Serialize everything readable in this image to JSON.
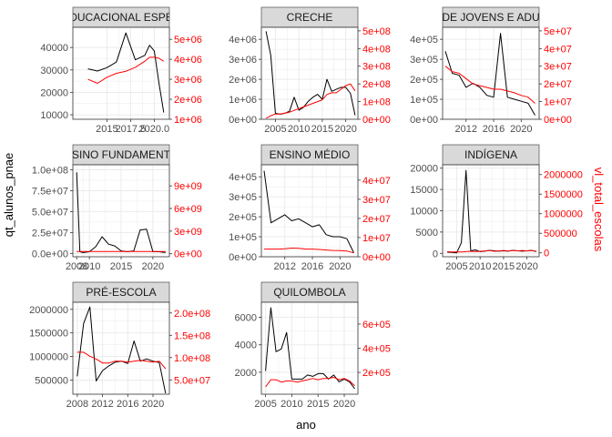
{
  "axis_titles": {
    "x": "ano",
    "y_left": "qt_alunos_pnae",
    "y_right": "vl_total_escolas"
  },
  "colors": {
    "primary_line": "#000000",
    "secondary_line": "#ff0000",
    "strip_fill": "#d9d9d9",
    "grid": "#ebebeb"
  },
  "chart_data": [
    {
      "type": "line",
      "panel": "EDUCACIONAL ESPECIAL",
      "strip_label": "DUCACIONAL ESPE",
      "xlim": [
        2011.4,
        2021.6
      ],
      "x_ticks": [
        2015.0,
        2017.5,
        2020.0
      ],
      "x_tick_labels": [
        "2015",
        "2017.5",
        "2020.0"
      ],
      "ylim_left": [
        8000,
        49000
      ],
      "y_ticks_left": [
        10000,
        20000,
        30000,
        40000
      ],
      "y_tick_labels_left": [
        "10000",
        "20000",
        "30000",
        "40000"
      ],
      "ylim_right": [
        1000000,
        5600000
      ],
      "y_ticks_right": [
        1000000,
        2000000,
        3000000,
        4000000,
        5000000
      ],
      "y_tick_labels_right": [
        "1e+06",
        "2e+06",
        "3e+06",
        "4e+06",
        "5e+06"
      ],
      "series": [
        {
          "axis": "left",
          "color": "#000000",
          "x": [
            2013,
            2014,
            2015,
            2016,
            2017,
            2018,
            2019,
            2019.5,
            2020,
            2020.5,
            2021
          ],
          "y": [
            30500,
            29500,
            31000,
            33500,
            46500,
            34500,
            36500,
            41000,
            38500,
            24000,
            11000
          ]
        },
        {
          "axis": "right",
          "color": "#ff0000",
          "x": [
            2013,
            2014,
            2015,
            2016,
            2017,
            2018,
            2019,
            2019.5,
            2020,
            2020.5,
            2021
          ],
          "y": [
            3000000,
            2800000,
            3100000,
            3300000,
            3400000,
            3600000,
            3900000,
            4100000,
            4100000,
            4050000,
            3900000
          ]
        }
      ]
    },
    {
      "type": "line",
      "panel": "CRECHE",
      "strip_label": "CRECHE",
      "xlim": [
        2002.0,
        2022.6
      ],
      "x_ticks": [
        2005,
        2010,
        2015,
        2020
      ],
      "x_tick_labels": [
        "2005",
        "2010",
        "2015",
        "2020"
      ],
      "ylim_left": [
        0,
        4600000
      ],
      "y_ticks_left": [
        0,
        1000000,
        2000000,
        3000000,
        4000000
      ],
      "y_tick_labels_left": [
        "0e+00",
        "1e+06",
        "2e+06",
        "3e+06",
        "4e+06"
      ],
      "ylim_right": [
        0,
        520000000
      ],
      "y_ticks_right": [
        0,
        100000000,
        200000000,
        300000000,
        400000000,
        500000000
      ],
      "y_tick_labels_right": [
        "0e+00",
        "1e+08",
        "2e+08",
        "3e+08",
        "4e+08",
        "5e+08"
      ],
      "series": [
        {
          "axis": "left",
          "color": "#000000",
          "x": [
            2003,
            2004,
            2005,
            2006,
            2007,
            2008,
            2009,
            2010,
            2011,
            2012,
            2013,
            2014,
            2015,
            2016,
            2017,
            2018,
            2019,
            2020,
            2021,
            2022
          ],
          "y": [
            4400000,
            3200000,
            300000,
            250000,
            300000,
            400000,
            1100000,
            450000,
            600000,
            900000,
            1100000,
            1250000,
            1000000,
            2000000,
            1400000,
            1500000,
            1600000,
            1600000,
            1300000,
            200000
          ]
        },
        {
          "axis": "right",
          "color": "#ff0000",
          "x": [
            2003,
            2004,
            2005,
            2006,
            2007,
            2008,
            2009,
            2010,
            2011,
            2012,
            2013,
            2014,
            2015,
            2016,
            2017,
            2018,
            2019,
            2020,
            2021,
            2022
          ],
          "y": [
            5000000,
            20000000,
            30000000,
            30000000,
            35000000,
            40000000,
            50000000,
            60000000,
            70000000,
            80000000,
            90000000,
            100000000,
            110000000,
            140000000,
            150000000,
            150000000,
            170000000,
            190000000,
            200000000,
            160000000
          ]
        }
      ]
    },
    {
      "type": "line",
      "panel": "EDUCAÇÃO DE JOVENS E ADULTOS",
      "strip_label": "DE JOVENS E ADU",
      "xlim": [
        2008.6,
        2022.6
      ],
      "x_ticks": [
        2012,
        2016,
        2020
      ],
      "x_tick_labels": [
        "2012",
        "2016",
        "2020"
      ],
      "ylim_left": [
        0,
        460000
      ],
      "y_ticks_left": [
        0,
        100000,
        200000,
        300000,
        400000
      ],
      "y_tick_labels_left": [
        "0e+00",
        "1e+05",
        "2e+05",
        "3e+05",
        "4e+05"
      ],
      "ylim_right": [
        0,
        52000000
      ],
      "y_ticks_right": [
        0,
        10000000,
        20000000,
        30000000,
        40000000,
        50000000
      ],
      "y_tick_labels_right": [
        "0e+00",
        "1e+07",
        "2e+07",
        "3e+07",
        "4e+07",
        "5e+07"
      ],
      "series": [
        {
          "axis": "left",
          "color": "#000000",
          "x": [
            2009,
            2010,
            2011,
            2012,
            2013,
            2014,
            2015,
            2016,
            2017,
            2018,
            2019,
            2020,
            2021,
            2022
          ],
          "y": [
            340000,
            230000,
            220000,
            160000,
            180000,
            160000,
            120000,
            110000,
            430000,
            110000,
            100000,
            90000,
            80000,
            20000
          ]
        },
        {
          "axis": "right",
          "color": "#ff0000",
          "x": [
            2009,
            2010,
            2011,
            2012,
            2013,
            2014,
            2015,
            2016,
            2017,
            2018,
            2019,
            2020,
            2021,
            2022
          ],
          "y": [
            30000000,
            27000000,
            26000000,
            23000000,
            20000000,
            19000000,
            18000000,
            17000000,
            17000000,
            16000000,
            15000000,
            13500000,
            12500000,
            9000000
          ]
        }
      ]
    },
    {
      "type": "line",
      "panel": "ENSINO FUNDAMENTAL",
      "strip_label": "SINO FUNDAMENT",
      "xlim": [
        2007.4,
        2022.6
      ],
      "x_ticks": [
        2008,
        2010,
        2015,
        2020
      ],
      "x_tick_labels": [
        "2008",
        "2010",
        "2015",
        "2020"
      ],
      "ylim_left": [
        -4000000,
        106000000
      ],
      "y_ticks_left": [
        0,
        25000000,
        50000000,
        75000000,
        100000000
      ],
      "y_tick_labels_left": [
        "0.0e+00",
        "2.5e+07",
        "5.0e+07",
        "7.5e+07",
        "1.0e+08"
      ],
      "ylim_right": [
        -400000000,
        11800000000
      ],
      "y_ticks_right": [
        0,
        3000000000,
        6000000000,
        9000000000
      ],
      "y_tick_labels_right": [
        "0e+00",
        "3e+09",
        "6e+09",
        "9e+09"
      ],
      "series": [
        {
          "axis": "left",
          "color": "#000000",
          "x": [
            2008,
            2008.5,
            2009,
            2010,
            2011,
            2012,
            2013,
            2014,
            2015,
            2016,
            2017,
            2018,
            2019,
            2020,
            2021,
            2022
          ],
          "y": [
            97000000,
            2000000,
            1000000,
            2000000,
            8000000,
            20000000,
            11000000,
            9000000,
            3000000,
            2000000,
            3000000,
            28000000,
            29000000,
            2000000,
            2000000,
            1000000
          ]
        },
        {
          "axis": "right",
          "color": "#ff0000",
          "x": [
            2008,
            2010,
            2012,
            2014,
            2016,
            2018,
            2020,
            2022
          ],
          "y": [
            300000000,
            300000000,
            300000000,
            300000000,
            300000000,
            300000000,
            300000000,
            300000000
          ]
        }
      ]
    },
    {
      "type": "line",
      "panel": "ENSINO MÉDIO",
      "strip_label": "ENSINO MÉDIO",
      "xlim": [
        2008.6,
        2022.6
      ],
      "x_ticks": [
        2012,
        2016,
        2020
      ],
      "x_tick_labels": [
        "2012",
        "2016",
        "2020"
      ],
      "ylim_left": [
        0,
        460000
      ],
      "y_ticks_left": [
        0,
        100000,
        200000,
        300000,
        400000
      ],
      "y_tick_labels_left": [
        "0e+00",
        "1e+05",
        "2e+05",
        "3e+05",
        "4e+05"
      ],
      "ylim_right": [
        0,
        48000000
      ],
      "y_ticks_right": [
        0,
        10000000,
        20000000,
        30000000,
        40000000
      ],
      "y_tick_labels_right": [
        "0e+00",
        "1e+07",
        "2e+07",
        "3e+07",
        "4e+07"
      ],
      "series": [
        {
          "axis": "left",
          "color": "#000000",
          "x": [
            2009,
            2010,
            2011,
            2012,
            2013,
            2014,
            2015,
            2016,
            2017,
            2018,
            2019,
            2020,
            2021,
            2022
          ],
          "y": [
            430000,
            170000,
            190000,
            210000,
            180000,
            190000,
            170000,
            150000,
            160000,
            110000,
            100000,
            100000,
            90000,
            20000
          ]
        },
        {
          "axis": "right",
          "color": "#ff0000",
          "x": [
            2009,
            2010,
            2011,
            2012,
            2013,
            2014,
            2015,
            2016,
            2017,
            2018,
            2019,
            2020,
            2021,
            2022
          ],
          "y": [
            4000000,
            4000000,
            4000000,
            4200000,
            4500000,
            4400000,
            4000000,
            4000000,
            3800000,
            3500000,
            3300000,
            3200000,
            3000000,
            2000000
          ]
        }
      ]
    },
    {
      "type": "line",
      "panel": "INDÍGENA",
      "strip_label": "INDÍGENA",
      "xlim": [
        2002.0,
        2022.6
      ],
      "x_ticks": [
        2005,
        2010,
        2015,
        2020
      ],
      "x_tick_labels": [
        "2005",
        "2010",
        "2015",
        "2020"
      ],
      "ylim_left": [
        -800,
        20800
      ],
      "y_ticks_left": [
        0,
        5000,
        10000,
        15000,
        20000
      ],
      "y_tick_labels_left": [
        "0",
        "5000",
        "10000",
        "15000",
        "20000"
      ],
      "ylim_right": [
        -100000,
        2250000
      ],
      "y_ticks_right": [
        0,
        500000,
        1000000,
        1500000,
        2000000
      ],
      "y_tick_labels_right": [
        "0",
        "500000",
        "1000000",
        "1500000",
        "2000000"
      ],
      "series": [
        {
          "axis": "left",
          "color": "#000000",
          "x": [
            2003,
            2004,
            2005,
            2006,
            2007,
            2008,
            2009,
            2010,
            2011,
            2012,
            2013,
            2014,
            2015,
            2016,
            2017,
            2018,
            2019,
            2020,
            2021,
            2022
          ],
          "y": [
            300,
            200,
            100,
            2500,
            19500,
            600,
            800,
            400,
            500,
            700,
            600,
            500,
            600,
            500,
            700,
            600,
            500,
            600,
            700,
            400
          ]
        },
        {
          "axis": "right",
          "color": "#ff0000",
          "x": [
            2003,
            2004,
            2005,
            2006,
            2007,
            2008,
            2009,
            2010,
            2011,
            2012,
            2013,
            2014,
            2015,
            2016,
            2017,
            2018,
            2019,
            2020,
            2021,
            2022
          ],
          "y": [
            30000,
            20000,
            20000,
            20000,
            30000,
            40000,
            30000,
            40000,
            50000,
            60000,
            40000,
            50000,
            60000,
            50000,
            60000,
            50000,
            60000,
            50000,
            60000,
            40000
          ]
        }
      ]
    },
    {
      "type": "line",
      "panel": "PRÉ-ESCOLA",
      "strip_label": "PRÉ-ESCOLA",
      "xlim": [
        2007.3,
        2022.6
      ],
      "x_ticks": [
        2008,
        2012,
        2016,
        2020
      ],
      "x_tick_labels": [
        "2008",
        "2012",
        "2016",
        "2020"
      ],
      "ylim_left": [
        200000,
        2150000
      ],
      "y_ticks_left": [
        500000,
        1000000,
        1500000,
        2000000
      ],
      "y_tick_labels_left": [
        "500000",
        "1000000",
        "1500000",
        "2000000"
      ],
      "ylim_right": [
        18000000,
        224000000
      ],
      "y_ticks_right": [
        50000000,
        100000000,
        150000000,
        200000000
      ],
      "y_tick_labels_right": [
        "5.0e+07",
        "1.0e+08",
        "1.5e+08",
        "2.0e+08"
      ],
      "series": [
        {
          "axis": "left",
          "color": "#000000",
          "x": [
            2008,
            2009,
            2010,
            2011,
            2012,
            2013,
            2014,
            2015,
            2016,
            2017,
            2018,
            2019,
            2020,
            2021,
            2022
          ],
          "y": [
            580000,
            1700000,
            2050000,
            480000,
            700000,
            800000,
            880000,
            900000,
            850000,
            1330000,
            900000,
            950000,
            900000,
            870000,
            220000
          ]
        },
        {
          "axis": "right",
          "color": "#ff0000",
          "x": [
            2008,
            2009,
            2010,
            2011,
            2012,
            2013,
            2014,
            2015,
            2016,
            2017,
            2018,
            2019,
            2020,
            2021,
            2022
          ],
          "y": [
            112000000,
            112000000,
            103000000,
            97000000,
            88000000,
            88000000,
            92000000,
            92000000,
            90000000,
            92000000,
            94000000,
            92000000,
            90000000,
            92000000,
            75000000
          ]
        }
      ]
    },
    {
      "type": "line",
      "panel": "QUILOMBOLA",
      "strip_label": "QUILOMBOLA",
      "xlim": [
        2004.2,
        2022.6
      ],
      "x_ticks": [
        2005,
        2010,
        2015,
        2020
      ],
      "x_tick_labels": [
        "2005",
        "2010",
        "2015",
        "2020"
      ],
      "ylim_left": [
        400,
        7100
      ],
      "y_ticks_left": [
        2000,
        4000,
        6000
      ],
      "y_tick_labels_left": [
        "2000",
        "4000",
        "6000"
      ],
      "ylim_right": [
        20000,
        780000
      ],
      "y_ticks_right": [
        200000,
        400000,
        600000
      ],
      "y_tick_labels_right": [
        "2e+05",
        "4e+05",
        "6e+05"
      ],
      "series": [
        {
          "axis": "left",
          "color": "#000000",
          "x": [
            2005,
            2006,
            2007,
            2008,
            2009,
            2010,
            2011,
            2012,
            2013,
            2014,
            2015,
            2016,
            2017,
            2018,
            2019,
            2020,
            2021,
            2022
          ],
          "y": [
            2100,
            6700,
            3500,
            3700,
            4900,
            1500,
            1500,
            1500,
            1800,
            1700,
            1900,
            1900,
            1500,
            1800,
            1300,
            1500,
            1300,
            800
          ]
        },
        {
          "axis": "right",
          "color": "#ff0000",
          "x": [
            2005,
            2006,
            2007,
            2008,
            2009,
            2010,
            2011,
            2012,
            2013,
            2014,
            2015,
            2016,
            2017,
            2018,
            2019,
            2020,
            2021,
            2022
          ],
          "y": [
            80000,
            140000,
            140000,
            120000,
            130000,
            130000,
            120000,
            130000,
            140000,
            150000,
            140000,
            150000,
            150000,
            160000,
            140000,
            150000,
            130000,
            90000
          ]
        }
      ]
    }
  ]
}
